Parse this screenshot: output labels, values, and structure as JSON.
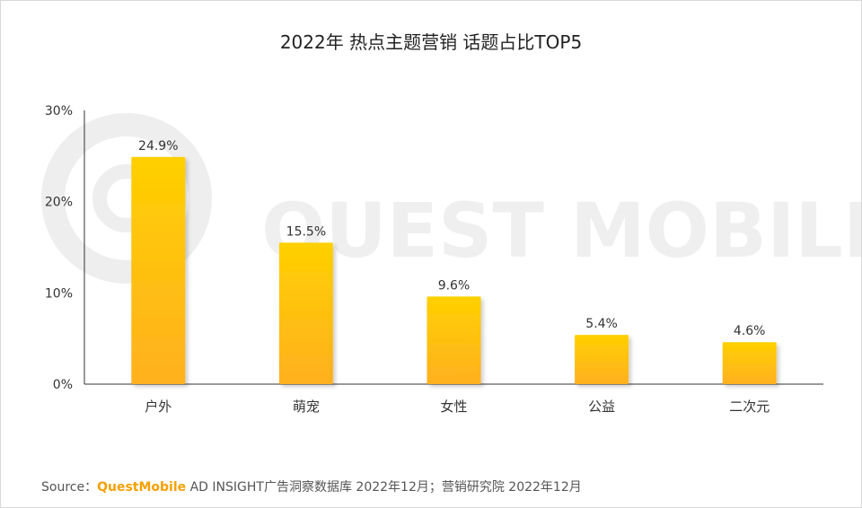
{
  "title": "2022年 热点主题营销 话题占比TOP5",
  "watermark": "QUEST MOBILE",
  "source": {
    "label": "Source：",
    "brand": "QuestMobile",
    "rest": " AD INSIGHT广告洞察数据库 2022年12月；营销研究院 2022年12月"
  },
  "colors": {
    "bar_top": "#FFD000",
    "bar_bottom": "#FFB020",
    "axis": "#333333",
    "text": "#333333"
  },
  "chart_data": {
    "type": "bar",
    "title": "2022年 热点主题营销 话题占比TOP5",
    "categories": [
      "户外",
      "萌宠",
      "女性",
      "公益",
      "二次元"
    ],
    "values": [
      24.9,
      15.5,
      9.6,
      5.4,
      4.6
    ],
    "value_labels": [
      "24.9%",
      "15.5%",
      "9.6%",
      "5.4%",
      "4.6%"
    ],
    "yticks": [
      0,
      10,
      20,
      30
    ],
    "ytick_labels": [
      "0%",
      "10%",
      "20%",
      "30%"
    ],
    "ylim": [
      0,
      30
    ],
    "xlabel": "",
    "ylabel": "",
    "grid": false,
    "legend": "none"
  }
}
